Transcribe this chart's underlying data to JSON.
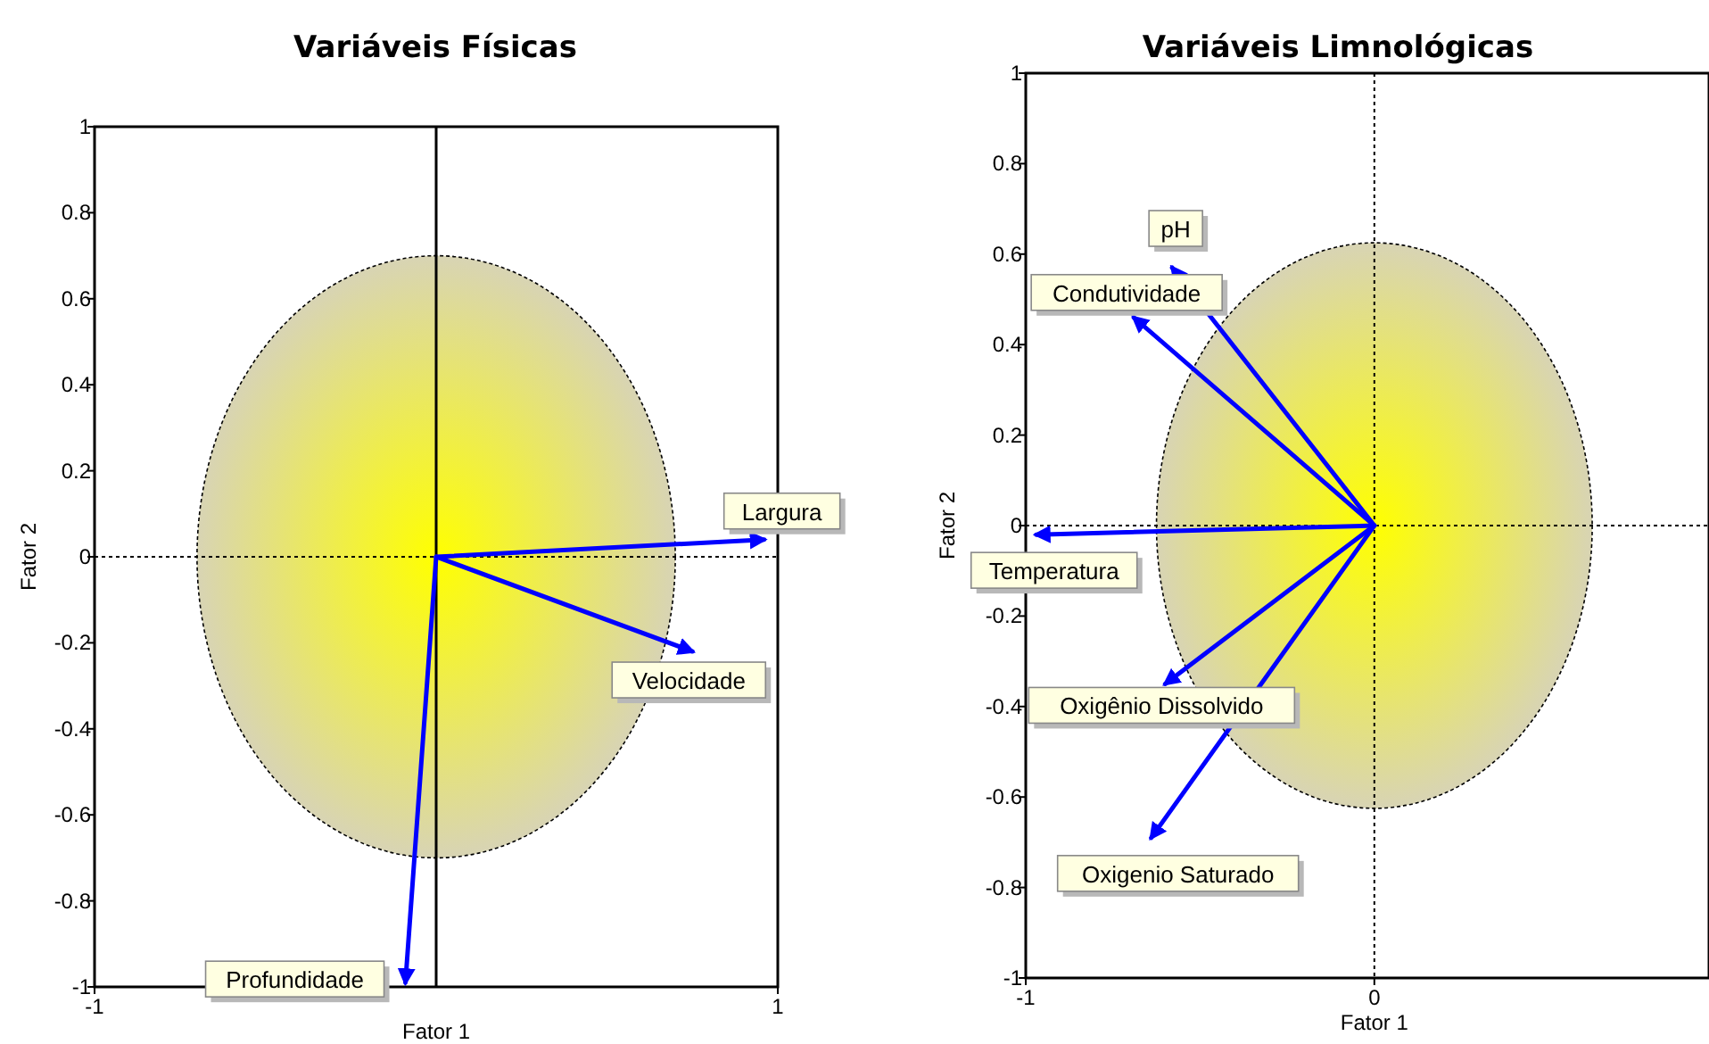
{
  "chart_data": [
    {
      "type": "line",
      "title": "Variáveis Físicas",
      "xlabel": "Fator 1",
      "ylabel": "Fator 2",
      "xlim": [
        -1,
        1
      ],
      "ylim": [
        -1,
        1
      ],
      "xticks": [
        -1,
        1
      ],
      "yticks": [
        -1,
        -0.8,
        -0.6,
        -0.4,
        -0.2,
        0,
        0.2,
        0.4,
        0.6,
        0.8,
        1
      ],
      "grid": false,
      "marker": "none",
      "line_style": "solid",
      "ref_lines": [
        {
          "axis": "x",
          "value": 0,
          "line_style": "solid",
          "color": "#000000"
        },
        {
          "axis": "y",
          "value": 0,
          "line_style": "dotted",
          "color": "#000000"
        }
      ],
      "series": [
        {
          "name": "Largura",
          "color": "#0000ff",
          "x": [
            0,
            0.96
          ],
          "values": [
            0,
            0.04
          ]
        },
        {
          "name": "Velocidade",
          "color": "#0000ff",
          "x": [
            0,
            0.75
          ],
          "values": [
            0,
            -0.22
          ]
        },
        {
          "name": "Profundidade",
          "color": "#0000ff",
          "x": [
            0,
            -0.09
          ],
          "values": [
            0,
            -0.99
          ]
        }
      ]
    },
    {
      "type": "line",
      "title": "Variáveis Limnológicas",
      "xlabel": "Fator 1",
      "ylabel": "Fator 2",
      "xlim": [
        -1,
        0.96
      ],
      "ylim": [
        -1,
        1
      ],
      "xticks": [
        -1,
        0
      ],
      "yticks": [
        -1,
        -0.8,
        -0.6,
        -0.4,
        -0.2,
        0,
        0.2,
        0.4,
        0.6,
        0.8,
        1
      ],
      "grid": false,
      "marker": "none",
      "line_style": "solid",
      "ref_lines": [
        {
          "axis": "x",
          "value": 0,
          "line_style": "dotted",
          "color": "#000000"
        },
        {
          "axis": "y",
          "value": 0,
          "line_style": "dotted",
          "color": "#000000"
        }
      ],
      "series": [
        {
          "name": "pH",
          "color": "#0000ff",
          "x": [
            0,
            -0.58
          ],
          "values": [
            0,
            0.57
          ]
        },
        {
          "name": "Condutividade",
          "color": "#0000ff",
          "x": [
            0,
            -0.69
          ],
          "values": [
            0,
            0.46
          ]
        },
        {
          "name": "Temperatura",
          "color": "#0000ff",
          "x": [
            0,
            -0.97
          ],
          "values": [
            0,
            -0.02
          ]
        },
        {
          "name": "Oxigênio Dissolvido",
          "color": "#0000ff",
          "x": [
            0,
            -0.6
          ],
          "values": [
            0,
            -0.35
          ]
        },
        {
          "name": "Oxigenio Saturado",
          "color": "#0000ff",
          "x": [
            0,
            -0.64
          ],
          "values": [
            0,
            -0.69
          ]
        }
      ]
    }
  ]
}
